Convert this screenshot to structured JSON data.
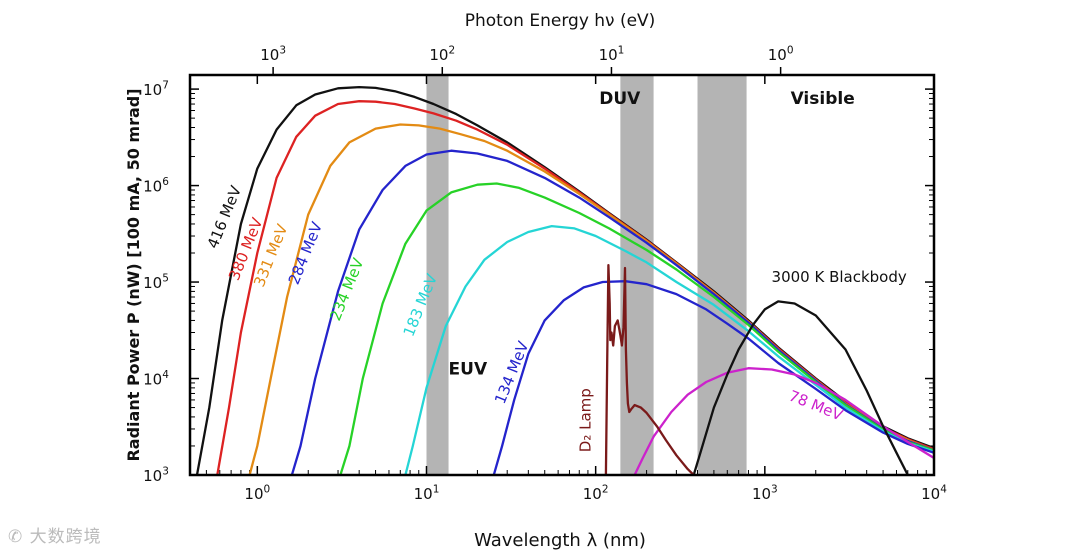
{
  "chart_data": {
    "type": "line",
    "title": "Photon Energy hν (eV)",
    "xlabel": "Wavelength λ (nm)",
    "ylabel": "Radiant Power P (nW) [100 mA, 50 mrad]",
    "x_scale": "log",
    "y_scale": "log",
    "xlim": [
      0.4,
      10000
    ],
    "ylim": [
      1000,
      14000000
    ],
    "x_ticks": [
      {
        "value": 1,
        "base": "10",
        "exp": "0"
      },
      {
        "value": 10,
        "base": "10",
        "exp": "1"
      },
      {
        "value": 100,
        "base": "10",
        "exp": "2"
      },
      {
        "value": 1000,
        "base": "10",
        "exp": "3"
      },
      {
        "value": 10000,
        "base": "10",
        "exp": "4"
      }
    ],
    "y_ticks": [
      {
        "value": 1000,
        "base": "10",
        "exp": "3"
      },
      {
        "value": 10000,
        "base": "10",
        "exp": "4"
      },
      {
        "value": 100000,
        "base": "10",
        "exp": "5"
      },
      {
        "value": 1000000,
        "base": "10",
        "exp": "6"
      },
      {
        "value": 10000000,
        "base": "10",
        "exp": "7"
      }
    ],
    "top_ticks": [
      {
        "energy": 1000,
        "base": "10",
        "exp": "3"
      },
      {
        "energy": 100,
        "base": "10",
        "exp": "2"
      },
      {
        "energy": 10,
        "base": "10",
        "exp": "1"
      },
      {
        "energy": 1,
        "base": "10",
        "exp": "0"
      }
    ],
    "bands": [
      {
        "name": "EUV",
        "from": 10,
        "to": 13.5,
        "color": "#b4b4b4",
        "label_x": 13.5,
        "label_y": 11000
      },
      {
        "name": "DUV",
        "from": 140,
        "to": 220,
        "color": "#b4b4b4",
        "label_x": 105,
        "label_y": 7000000
      },
      {
        "name": "Visible",
        "from": 400,
        "to": 780,
        "color": "#b4b4b4",
        "label_x": 1420,
        "label_y": 7000000
      }
    ],
    "series": [
      {
        "name": "416 MeV",
        "color": "#111111",
        "label_x": 0.68,
        "label_y": 450000,
        "rot": -68,
        "x": [
          0.44,
          0.52,
          0.62,
          0.8,
          1.0,
          1.3,
          1.7,
          2.2,
          3.0,
          4.0,
          5.0,
          6.5,
          8.5,
          11,
          15,
          20,
          30,
          50,
          80,
          120,
          200,
          300,
          500,
          800,
          1200,
          2000,
          3000,
          5000,
          7000,
          10000
        ],
        "y": [
          1000,
          5000,
          40000,
          400000,
          1500000,
          3800000,
          6800000,
          8800000,
          10200000,
          10500000,
          10300000,
          9500000,
          8300000,
          7000000,
          5500000,
          4200000,
          2800000,
          1550000,
          870000,
          520000,
          275000,
          160000,
          80000,
          40000,
          21000,
          10000,
          5800,
          3200,
          2400,
          1900
        ]
      },
      {
        "name": "380 MeV",
        "color": "#dd2222",
        "label_x": 0.91,
        "label_y": 210000,
        "rot": -68,
        "x": [
          0.58,
          0.68,
          0.8,
          1.0,
          1.3,
          1.7,
          2.2,
          3.0,
          4.0,
          5.0,
          6.5,
          8.5,
          11,
          15,
          20,
          30,
          50,
          80,
          120,
          200,
          300,
          500,
          800,
          1200,
          2000,
          3000,
          5000,
          7000,
          10000
        ],
        "y": [
          1000,
          5000,
          30000,
          200000,
          1200000,
          3200000,
          5300000,
          7000000,
          7500000,
          7400000,
          7000000,
          6300000,
          5600000,
          4700000,
          3800000,
          2650000,
          1500000,
          850000,
          510000,
          270000,
          157000,
          78000,
          39000,
          20500,
          9800,
          5600,
          3100,
          2350,
          1850
        ]
      },
      {
        "name": "331 MeV",
        "color": "#e38b14",
        "label_x": 1.28,
        "label_y": 180000,
        "rot": -68,
        "x": [
          0.9,
          1.0,
          1.2,
          1.5,
          2.0,
          2.7,
          3.5,
          5.0,
          7.0,
          9.0,
          12,
          16,
          22,
          30,
          50,
          80,
          120,
          200,
          300,
          500,
          800,
          1200,
          2000,
          3000,
          5000,
          7000,
          10000
        ],
        "y": [
          1000,
          2000,
          10000,
          70000,
          500000,
          1600000,
          2800000,
          3900000,
          4300000,
          4200000,
          3900000,
          3400000,
          2900000,
          2300000,
          1400000,
          820000,
          500000,
          265000,
          155000,
          77000,
          38500,
          20000,
          9600,
          5500,
          3050,
          2300,
          1800
        ]
      },
      {
        "name": "284 MeV",
        "color": "#2424cc",
        "label_x": 2.05,
        "label_y": 190000,
        "rot": -68,
        "x": [
          1.6,
          1.8,
          2.2,
          3.0,
          4.0,
          5.5,
          7.5,
          10,
          14,
          20,
          30,
          50,
          80,
          120,
          200,
          300,
          500,
          800,
          1200,
          2000,
          3000,
          5000,
          7000,
          10000
        ],
        "y": [
          1000,
          2000,
          10000,
          80000,
          350000,
          900000,
          1600000,
          2100000,
          2300000,
          2150000,
          1800000,
          1200000,
          750000,
          470000,
          255000,
          150000,
          75000,
          38000,
          19800,
          9500,
          5400,
          3000,
          2250,
          1800
        ]
      },
      {
        "name": "234 MeV",
        "color": "#27d227",
        "label_x": 3.6,
        "label_y": 80000,
        "rot": -68,
        "x": [
          3.1,
          3.5,
          4.2,
          5.5,
          7.5,
          10,
          14,
          20,
          26,
          35,
          50,
          80,
          120,
          200,
          300,
          500,
          800,
          1200,
          2000,
          3000,
          5000,
          7000,
          10000
        ],
        "y": [
          1000,
          2000,
          10000,
          60000,
          250000,
          550000,
          850000,
          1020000,
          1050000,
          950000,
          750000,
          520000,
          360000,
          215000,
          135000,
          70000,
          36000,
          19000,
          9200,
          5300,
          2950,
          2200,
          1800
        ]
      },
      {
        "name": "183 MeV",
        "color": "#25d5d5",
        "label_x": 9.8,
        "label_y": 55000,
        "rot": -68,
        "x": [
          7.5,
          8.3,
          10,
          13,
          17,
          22,
          30,
          40,
          55,
          75,
          100,
          150,
          200,
          300,
          500,
          800,
          1200,
          2000,
          3000,
          5000,
          7000,
          10000
        ],
        "y": [
          1000,
          2000,
          8000,
          35000,
          90000,
          170000,
          260000,
          330000,
          380000,
          360000,
          300000,
          210000,
          160000,
          100000,
          58000,
          31000,
          17000,
          8600,
          5000,
          2850,
          2150,
          1750
        ]
      },
      {
        "name": "134 MeV",
        "color": "#2424cc",
        "label_x": 34,
        "label_y": 11000,
        "rot": -68,
        "x": [
          25,
          28,
          33,
          40,
          50,
          65,
          85,
          110,
          150,
          200,
          300,
          450,
          600,
          800,
          1200,
          2000,
          3000,
          5000,
          7000,
          10000
        ],
        "y": [
          1000,
          2000,
          6000,
          18000,
          40000,
          65000,
          88000,
          100000,
          102000,
          95000,
          75000,
          52000,
          37000,
          26000,
          14500,
          7800,
          4700,
          2750,
          2100,
          1700
        ]
      },
      {
        "name": "78 MeV",
        "color": "#cc22cc",
        "label_x": 1950,
        "label_y": 4700,
        "rot": 22,
        "x": [
          170,
          190,
          220,
          280,
          350,
          450,
          600,
          800,
          1100,
          1500,
          2000,
          3000,
          5000,
          7000,
          10000
        ],
        "y": [
          1000,
          1500,
          2500,
          4500,
          6800,
          9200,
          11500,
          12800,
          12400,
          11000,
          9000,
          6000,
          3200,
          2200,
          1500
        ]
      },
      {
        "name": "3000 K Blackbody",
        "color": "#111111",
        "label_x": 2750,
        "label_y": 100000,
        "rot": 0,
        "x": [
          380,
          420,
          500,
          600,
          700,
          850,
          1000,
          1200,
          1500,
          2000,
          3000,
          4000,
          5000,
          6000,
          7000
        ],
        "y": [
          1000,
          1800,
          5000,
          11000,
          20000,
          36000,
          52000,
          63000,
          60000,
          45000,
          20000,
          7500,
          3200,
          1700,
          1000
        ]
      },
      {
        "name": "D₂ Lamp",
        "color": "#7a1a1a",
        "label_x": 93,
        "label_y": 3700,
        "rot": -90,
        "x": [
          115,
          117,
          119,
          121,
          122,
          124,
          127,
          130,
          135,
          140,
          143,
          146,
          149,
          151,
          153,
          155,
          158,
          162,
          170,
          185,
          200,
          230,
          260,
          300,
          350,
          380
        ],
        "y": [
          1000,
          15000,
          150000,
          60000,
          25000,
          30000,
          22000,
          35000,
          40000,
          28000,
          22000,
          34000,
          140000,
          20000,
          9000,
          5500,
          4500,
          4800,
          5300,
          5000,
          4400,
          3200,
          2300,
          1600,
          1150,
          1000
        ]
      }
    ]
  },
  "watermark": "大数跨境"
}
